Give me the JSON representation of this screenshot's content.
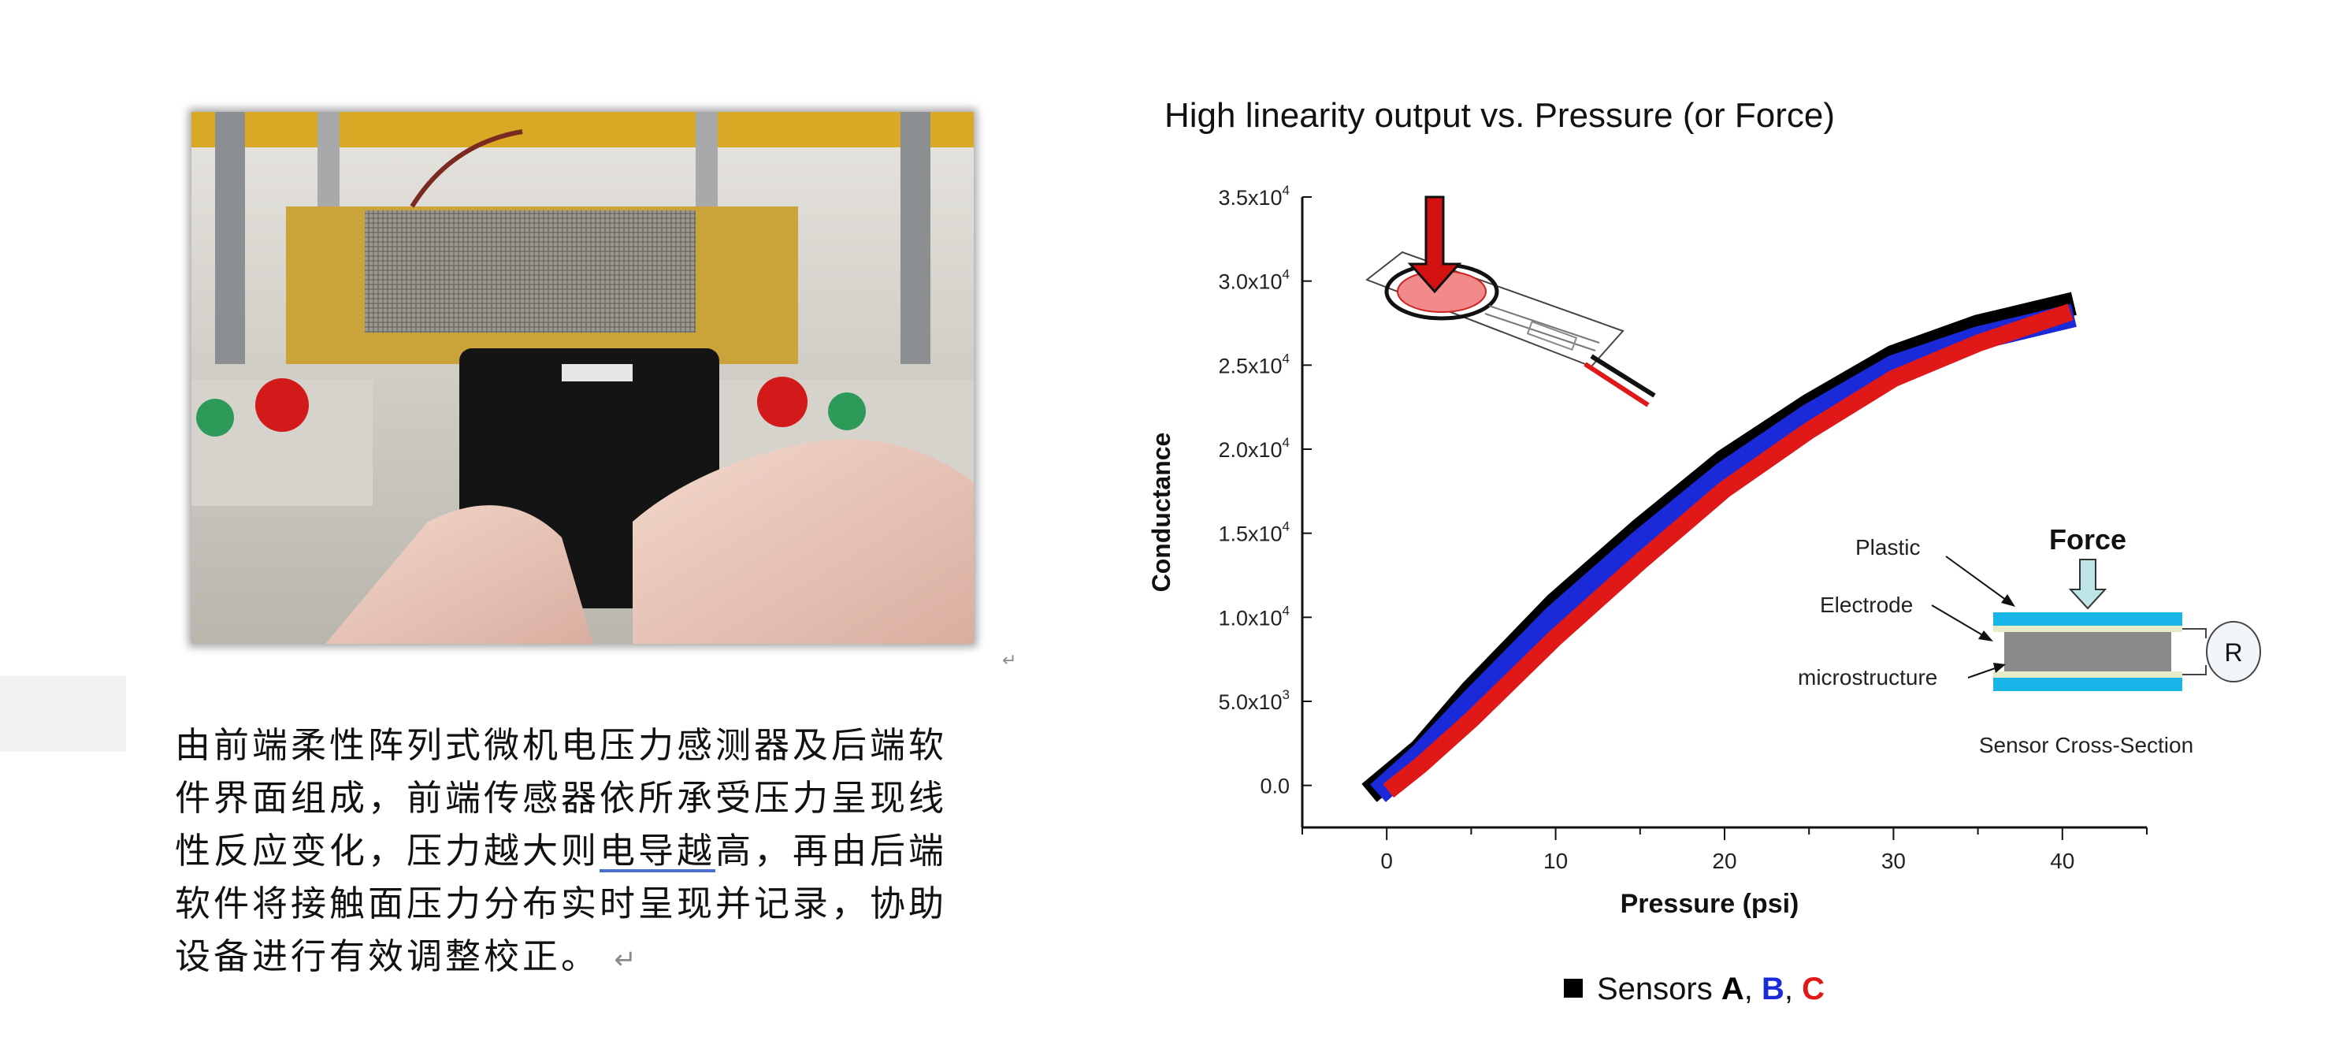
{
  "description": {
    "line1": "由前端柔性阵列式微机电压力感测器及后端软",
    "line2": "件界面组成，前端传感器依所承受压力呈现线",
    "line3_pre": "性反应变化，压力越大则",
    "line3_ul": "电导越",
    "line3_post": "高，再由后端",
    "line4": "软件将接触面压力分布实时呈现并记录，协助",
    "line5": "设备进行有效调整校正。",
    "return_mark": "↵"
  },
  "chart_data": {
    "type": "scatter",
    "title": "High linearity output vs. Pressure (or Force)",
    "xlabel": "Pressure (psi)",
    "ylabel": "Conductance",
    "xlim": [
      -5,
      45
    ],
    "ylim": [
      -2500,
      35000
    ],
    "x_ticks": [
      0,
      10,
      20,
      30,
      40
    ],
    "x_tick_labels": [
      "0",
      "10",
      "20",
      "30",
      "40"
    ],
    "y_ticks": [
      0,
      5000,
      10000,
      15000,
      20000,
      25000,
      30000,
      35000
    ],
    "y_tick_labels": [
      {
        "base": "0.0",
        "exp": ""
      },
      {
        "base": "5.0x10",
        "exp": "3"
      },
      {
        "base": "1.0x10",
        "exp": "4"
      },
      {
        "base": "1.5x10",
        "exp": "4"
      },
      {
        "base": "2.0x10",
        "exp": "4"
      },
      {
        "base": "2.5x10",
        "exp": "4"
      },
      {
        "base": "3.0x10",
        "exp": "4"
      },
      {
        "base": "3.5x10",
        "exp": "4"
      }
    ],
    "legend": {
      "marker": "■",
      "prefix": "Sensors ",
      "a": "A",
      "sep1": ", ",
      "b": "B",
      "sep2": ", ",
      "c": "C"
    },
    "series": [
      {
        "color": "#000000",
        "x": [
          -0.5,
          2,
          5,
          10,
          15,
          20,
          25,
          30,
          35,
          40
        ],
        "y": [
          0,
          2100,
          5600,
          10800,
          15200,
          19300,
          22600,
          25500,
          27300,
          28500
        ]
      },
      {
        "color": "#1a2ad8",
        "x": [
          0,
          2,
          5,
          10,
          15,
          20,
          25,
          30,
          35,
          40
        ],
        "y": [
          0,
          1800,
          5000,
          10100,
          14500,
          18600,
          22000,
          24900,
          26600,
          27800
        ]
      },
      {
        "color": "#e01818",
        "x": [
          0.5,
          2,
          5,
          10,
          15,
          20,
          25,
          30,
          35,
          40
        ],
        "y": [
          0,
          1200,
          3900,
          8800,
          13300,
          17600,
          21100,
          24200,
          26300,
          28000
        ]
      }
    ],
    "annotations": {
      "plastic": "Plastic",
      "electrode": "Electrode",
      "microstructure": "microstructure",
      "force": "Force",
      "resistor": "R",
      "cross_section": "Sensor Cross-Section"
    }
  }
}
